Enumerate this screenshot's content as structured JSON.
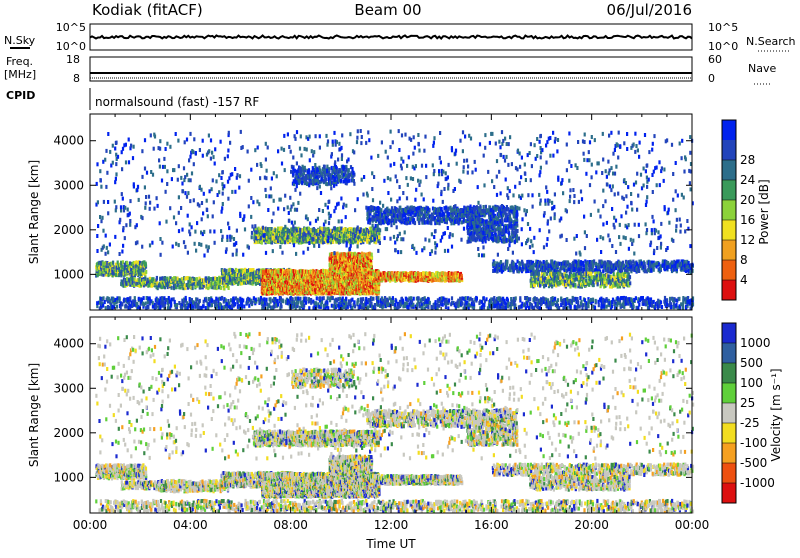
{
  "header": {
    "station": "Kodiak (fitACF)",
    "beam": "Beam 00",
    "date": "06/Jul/2016"
  },
  "top_panels": {
    "nsky_label": "N.Sky",
    "nsearch_label": "N.Search",
    "nsky_ticks": [
      "10^5",
      "10^0"
    ],
    "nsearch_ticks": [
      "10^5",
      "10^0"
    ],
    "freq_label": "Freq.",
    "freq_unit": "[MHz]",
    "freq_ticks": [
      "18",
      "8"
    ],
    "nave_label": "Nave",
    "nave_ticks": [
      "60",
      "0"
    ],
    "cpid_label": "CPID",
    "cpid_text": "normalsound (fast) -157 RF"
  },
  "chart_data": [
    {
      "type": "heatmap",
      "name": "power",
      "ylabel": "Slant Range [km]",
      "xlabel": "",
      "y_ticks": [
        1000,
        2000,
        3000,
        4000
      ],
      "ylim": [
        200,
        4600
      ],
      "colorbar_label": "Power [dB]",
      "colorbar_ticks": [
        "4",
        "8",
        "12",
        "16",
        "20",
        "24",
        "28"
      ],
      "colorbar_colors": [
        "#0022ee",
        "#2244bb",
        "#2c6e8a",
        "#3a9a5a",
        "#8cd23a",
        "#f0e020",
        "#f0a020",
        "#ee6010",
        "#dd1010"
      ]
    },
    {
      "type": "heatmap",
      "name": "velocity",
      "ylabel": "Slant Range [km]",
      "xlabel": "Time UT",
      "x_ticks": [
        "00:00",
        "04:00",
        "08:00",
        "12:00",
        "16:00",
        "20:00",
        "00:00"
      ],
      "y_ticks": [
        1000,
        2000,
        3000,
        4000
      ],
      "ylim": [
        200,
        4600
      ],
      "colorbar_label": "Velocity [m s⁻¹]",
      "colorbar_ticks": [
        "1000",
        "500",
        "100",
        "25",
        "-25",
        "-100",
        "-500",
        "-1000"
      ],
      "colorbar_colors": [
        "#1a2ad0",
        "#2f5fa0",
        "#3a8a4a",
        "#5fcf3a",
        "#c8c8c0",
        "#f2dd20",
        "#f5a020",
        "#ee5010",
        "#dd1010"
      ]
    }
  ]
}
